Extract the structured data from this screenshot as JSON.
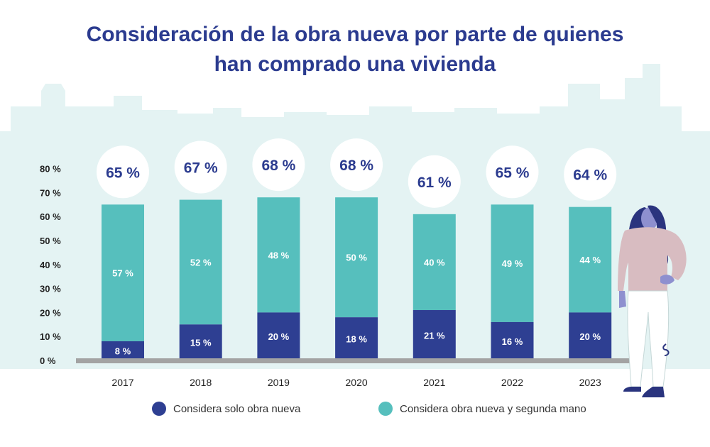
{
  "title_line1": "Consideración de la obra nueva por parte de quienes",
  "title_line2": "han comprado una vivienda",
  "colors": {
    "title": "#2b3b8f",
    "dark": "#2e3f92",
    "teal": "#56bfbd",
    "skyline": "#e4f3f3",
    "axis": "#a3a3a3"
  },
  "legend": {
    "dark_label": "Considera solo obra nueva",
    "teal_label": "Considera obra nueva y segunda mano"
  },
  "chart_data": {
    "type": "bar",
    "stacked": true,
    "title": "Consideración de la obra nueva por parte de quienes han comprado una vivienda",
    "categories": [
      "2017",
      "2018",
      "2019",
      "2020",
      "2021",
      "2022",
      "2023"
    ],
    "series": [
      {
        "name": "Considera solo obra nueva",
        "values": [
          8,
          15,
          20,
          18,
          21,
          16,
          20
        ],
        "labels": [
          "8 %",
          "15 %",
          "20 %",
          "18 %",
          "21 %",
          "16 %",
          "20 %"
        ]
      },
      {
        "name": "Considera obra nueva y segunda mano",
        "values": [
          57,
          52,
          48,
          50,
          40,
          49,
          44
        ],
        "labels": [
          "57 %",
          "52 %",
          "48 %",
          "50 %",
          "40 %",
          "49 %",
          "44 %"
        ]
      }
    ],
    "totals": [
      65,
      67,
      68,
      68,
      61,
      65,
      64
    ],
    "total_labels": [
      "65 %",
      "67 %",
      "68 %",
      "68 %",
      "61 %",
      "65 %",
      "64 %"
    ],
    "yticks": [
      0,
      10,
      20,
      30,
      40,
      50,
      60,
      70,
      80
    ],
    "ytick_labels": [
      "0 %",
      "10 %",
      "20 %",
      "30 %",
      "40 %",
      "50 %",
      "60 %",
      "70 %",
      "80 %"
    ],
    "ylim": [
      0,
      80
    ],
    "xlabel": "",
    "ylabel": ""
  }
}
